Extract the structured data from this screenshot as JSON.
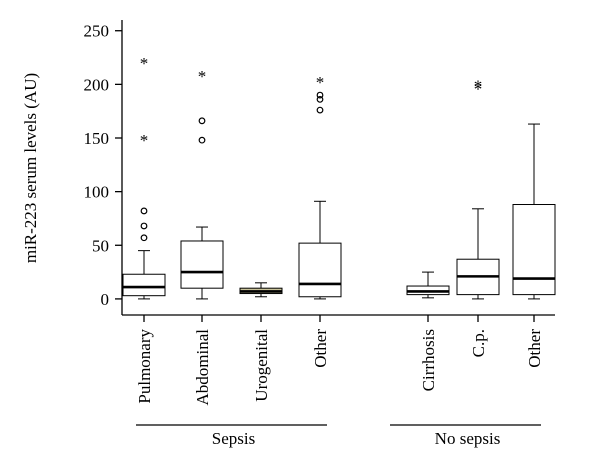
{
  "chart_data": {
    "type": "boxplot",
    "ylabel": "miR-223 serum levels (AU)",
    "ylim": [
      -15,
      260
    ],
    "yticks": [
      0,
      50,
      100,
      150,
      200,
      250
    ],
    "categories": [
      "Pulmonary",
      "Abdominal",
      "Urogenital",
      "Other",
      "Cirrhosis",
      "C.p.",
      "Other"
    ],
    "groups": [
      {
        "name": "Sepsis",
        "categories": [
          "Pulmonary",
          "Abdominal",
          "Urogenital",
          "Other"
        ]
      },
      {
        "name": "No sepsis",
        "categories": [
          "Cirrhosis",
          "C.p.",
          "Other"
        ]
      }
    ],
    "boxes": [
      {
        "category": "Pulmonary",
        "whisker_low": 0,
        "q1": 3,
        "median": 11,
        "q3": 23,
        "whisker_high": 45,
        "outliers": [
          57,
          68,
          82
        ],
        "extremes": [
          148,
          220
        ]
      },
      {
        "category": "Abdominal",
        "whisker_low": 0,
        "q1": 10,
        "median": 25,
        "q3": 54,
        "whisker_high": 67,
        "outliers": [
          148,
          166
        ],
        "extremes": [
          208
        ]
      },
      {
        "category": "Urogenital",
        "whisker_low": 2,
        "q1": 5,
        "median": 7,
        "q3": 10,
        "whisker_high": 15,
        "outliers": [],
        "extremes": []
      },
      {
        "category": "Other",
        "whisker_low": 0,
        "q1": 2,
        "median": 14,
        "q3": 52,
        "whisker_high": 91,
        "outliers": [
          176,
          186,
          190
        ],
        "extremes": [
          202
        ]
      },
      {
        "category": "Cirrhosis",
        "whisker_low": 1,
        "q1": 4,
        "median": 7,
        "q3": 12,
        "whisker_high": 25,
        "outliers": [],
        "extremes": []
      },
      {
        "category": "C.p.",
        "whisker_low": 0,
        "q1": 4,
        "median": 21,
        "q3": 37,
        "whisker_high": 84,
        "outliers": [],
        "extremes": [
          199,
          196
        ]
      },
      {
        "category": "Other",
        "whisker_low": 0,
        "q1": 4,
        "median": 19,
        "q3": 88,
        "whisker_high": 163,
        "outliers": [],
        "extremes": []
      }
    ],
    "colors": {
      "box_fill": "#ffffff",
      "urogenital_fill": "#c9c39a",
      "stroke": "#000000"
    },
    "grid": false
  }
}
